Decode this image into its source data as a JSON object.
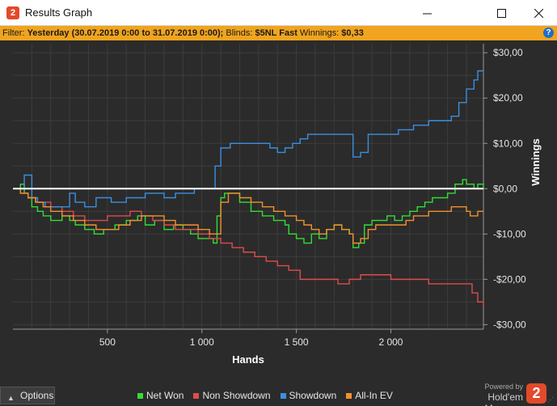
{
  "window": {
    "title": "Results Graph",
    "minimize_glyph": "—",
    "maximize_glyph": "☐",
    "close_glyph": "✕",
    "app_icon_label": "2"
  },
  "filter": {
    "prefix": "Filter: ",
    "date_range": "Yesterday (30.07.2019 0:00 to 31.07.2019 0:00);",
    "blinds_label": " Blinds: ",
    "blinds_value": "$5NL Fast",
    "winnings_label": " Winnings: ",
    "winnings_value": "$0,33",
    "help_glyph": "?"
  },
  "colors": {
    "net_won": "#33dd33",
    "non_showdown": "#e14b4b",
    "showdown": "#3b8fe0",
    "all_in_ev": "#f0922c",
    "zero_line": "#ffffff",
    "grid": "#3d3d3d",
    "filter_bar": "#f0a41f",
    "brand": "#e24a2b"
  },
  "footer": {
    "options_label": "Options",
    "powered_by": "Powered by",
    "brand_name": "Hold'em Manager",
    "brand_logo": "2"
  },
  "chart_data": {
    "type": "line",
    "xlabel": "Hands",
    "ylabel": "Winnings",
    "xlim": [
      0,
      2490
    ],
    "ylim": [
      -31,
      32
    ],
    "x_ticks": [
      500,
      1000,
      1500,
      2000
    ],
    "x_tick_labels": [
      "500",
      "1 000",
      "1 500",
      "2 000"
    ],
    "y_ticks": [
      30,
      20,
      10,
      0,
      -10,
      -20,
      -30
    ],
    "y_tick_labels": [
      "$30,00",
      "$20,00",
      "$10,00",
      "$0,00",
      "-$10,00",
      "-$20,00",
      "-$30,00"
    ],
    "legend_position": "bottom",
    "series": [
      {
        "name": "Net Won",
        "x": [
          0,
          40,
          60,
          80,
          100,
          130,
          160,
          200,
          260,
          300,
          330,
          380,
          430,
          480,
          540,
          600,
          660,
          700,
          750,
          800,
          850,
          900,
          940,
          980,
          1020,
          1060,
          1080,
          1100,
          1120,
          1140,
          1200,
          1260,
          1320,
          1380,
          1440,
          1460,
          1500,
          1540,
          1580,
          1620,
          1660,
          1700,
          1740,
          1780,
          1800,
          1830,
          1860,
          1900,
          1940,
          1980,
          2020,
          2060,
          2100,
          2140,
          2180,
          2220,
          2260,
          2300,
          2340,
          2380,
          2400,
          2420,
          2440,
          2460,
          2490
        ],
        "y": [
          0,
          1,
          -1,
          -2,
          -4,
          -5,
          -6,
          -7,
          -6,
          -7,
          -8,
          -9,
          -10,
          -9,
          -8,
          -7,
          -6,
          -8,
          -7,
          -9,
          -8,
          -9,
          -10,
          -11,
          -11,
          -12,
          -6,
          -2,
          -1,
          -1,
          -3,
          -5,
          -6,
          -7,
          -8,
          -10,
          -11,
          -12,
          -10,
          -11,
          -9,
          -8,
          -9,
          -10,
          -13,
          -12,
          -8,
          -7,
          -7,
          -6,
          -7,
          -6,
          -5,
          -4,
          -3,
          -2,
          -2,
          -1,
          1,
          2,
          1,
          1,
          0,
          1,
          0
        ]
      },
      {
        "name": "Non Showdown",
        "x": [
          0,
          40,
          80,
          120,
          160,
          200,
          260,
          320,
          380,
          440,
          500,
          560,
          620,
          680,
          740,
          800,
          860,
          920,
          980,
          1040,
          1100,
          1160,
          1220,
          1280,
          1340,
          1400,
          1460,
          1520,
          1560,
          1600,
          1660,
          1720,
          1780,
          1840,
          1900,
          1960,
          2000,
          2040,
          2100,
          2160,
          2200,
          2240,
          2280,
          2320,
          2360,
          2400,
          2430,
          2460,
          2490
        ],
        "y": [
          0,
          -1,
          -2,
          -3,
          -3,
          -4,
          -5,
          -6,
          -7,
          -7,
          -6,
          -6,
          -5,
          -6,
          -7,
          -8,
          -9,
          -9,
          -10,
          -11,
          -12,
          -13,
          -14,
          -15,
          -16,
          -17,
          -18,
          -20,
          -20,
          -20,
          -20,
          -21,
          -20,
          -19,
          -19,
          -19,
          -20,
          -20,
          -20,
          -20,
          -21,
          -21,
          -21,
          -21,
          -21,
          -21,
          -23,
          -25,
          -26
        ]
      },
      {
        "name": "Showdown",
        "x": [
          0,
          60,
          80,
          100,
          130,
          170,
          200,
          260,
          300,
          330,
          380,
          440,
          480,
          520,
          560,
          600,
          660,
          700,
          740,
          800,
          860,
          920,
          960,
          1000,
          1040,
          1060,
          1070,
          1100,
          1150,
          1200,
          1250,
          1300,
          1360,
          1400,
          1440,
          1480,
          1520,
          1560,
          1620,
          1660,
          1720,
          1760,
          1780,
          1800,
          1840,
          1880,
          1920,
          1960,
          2000,
          2040,
          2080,
          2120,
          2160,
          2200,
          2240,
          2280,
          2320,
          2360,
          2400,
          2440,
          2460,
          2490
        ],
        "y": [
          0,
          3,
          3,
          -2,
          -3,
          -4,
          -4,
          -4,
          -1,
          -3,
          -4,
          -2,
          -2,
          -3,
          -3,
          -2,
          -2,
          -1,
          -1,
          -2,
          -1,
          -1,
          0,
          0,
          0,
          0,
          5,
          9,
          10,
          10,
          10,
          10,
          9,
          8,
          9,
          10,
          11,
          12,
          12,
          12,
          12,
          12,
          12,
          7,
          8,
          12,
          12,
          12,
          12,
          13,
          13,
          14,
          14,
          15,
          15,
          15,
          16,
          19,
          22,
          24,
          26,
          26
        ]
      },
      {
        "name": "All-In EV",
        "x": [
          0,
          40,
          80,
          120,
          160,
          200,
          260,
          320,
          380,
          440,
          500,
          560,
          620,
          680,
          740,
          800,
          860,
          920,
          980,
          1040,
          1080,
          1100,
          1140,
          1200,
          1260,
          1320,
          1380,
          1440,
          1500,
          1540,
          1580,
          1620,
          1660,
          1700,
          1740,
          1780,
          1800,
          1840,
          1880,
          1920,
          1960,
          2000,
          2040,
          2080,
          2120,
          2160,
          2200,
          2240,
          2280,
          2320,
          2360,
          2400,
          2420,
          2440,
          2460,
          2490
        ],
        "y": [
          0,
          -1,
          -2,
          -3,
          -4,
          -5,
          -6,
          -7,
          -8,
          -9,
          -9,
          -8,
          -7,
          -6,
          -6,
          -7,
          -8,
          -8,
          -9,
          -10,
          -10,
          -3,
          -1,
          -2,
          -3,
          -4,
          -5,
          -6,
          -7,
          -8,
          -9,
          -10,
          -9,
          -8,
          -9,
          -10,
          -12,
          -11,
          -9,
          -8,
          -8,
          -8,
          -8,
          -7,
          -6,
          -6,
          -5,
          -5,
          -5,
          -4,
          -4,
          -5,
          -6,
          -6,
          -5,
          -5
        ]
      }
    ]
  }
}
